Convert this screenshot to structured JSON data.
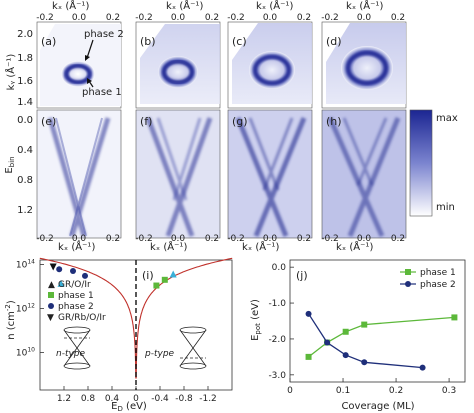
{
  "figure": {
    "top_axis_label": "kₓ (Å⁻¹)",
    "top_ticks": [
      "-0.2",
      "0.0",
      "0.2"
    ],
    "bottom_axis_label": "kₓ (Å⁻¹)",
    "bottom_ticks": [
      "-0.2",
      "0.0",
      "0.2"
    ],
    "ky_label": "kᵧ (Å⁻¹)",
    "ky_ticks": [
      "2.0",
      "1.8",
      "1.6",
      "1.4"
    ],
    "ebin_label": "Eₕᵢₙ (eV)",
    "ebin_label_main": "E",
    "ebin_label_sub": "bin",
    "ebin_ticks": [
      "0.0",
      "0.4",
      "0.8",
      "1.2"
    ],
    "panel_letters_top": [
      "(a)",
      "(b)",
      "(c)",
      "(d)"
    ],
    "panel_letters_mid": [
      "(e)",
      "(f)",
      "(g)",
      "(h)"
    ],
    "annotation_phase2": "phase 2",
    "annotation_phase1": "phase 1",
    "colorbar_max": "max",
    "colorbar_min": "min"
  },
  "plot_i": {
    "letter": "(i)",
    "ylabel": "n (cm⁻²)",
    "ylabel_main": "n (cm",
    "ylabel_exp": "-2",
    "ylabel_close": ")",
    "yticks_base": [
      "10",
      "10",
      "10"
    ],
    "yticks_exp": [
      "14",
      "12",
      "10"
    ],
    "xlabel_main": "E",
    "xlabel_sub": "D",
    "xlabel_rest": " (eV)",
    "xticks": [
      "1.2",
      "0.8",
      "0.4",
      "0",
      "-0.4",
      "-0.8",
      "-1.2"
    ],
    "legend": [
      "GR/O/Ir",
      "phase 1",
      "phase 2",
      "GR/Rb/O/Ir"
    ],
    "ntype": "n-type",
    "ptype": "p-type"
  },
  "plot_j": {
    "letter": "(j)",
    "ylabel_main": "E",
    "ylabel_sub": "pot",
    "ylabel_rest": " (eV)",
    "yticks": [
      "0.0",
      "-1.0",
      "-2.0",
      "-3.0"
    ],
    "xticks": [
      "0",
      "0.1",
      "0.2",
      "0.3"
    ],
    "xlabel": "Coverage  (ML)",
    "legend": [
      "phase 1",
      "phase 2"
    ]
  },
  "colors": {
    "phase1": "#5cb83a",
    "phase2": "#1f2f7a",
    "curve": "#c0302a",
    "gr_o_ir": "#3ab0d8",
    "arpes_dark": "#1b2592"
  },
  "chart_data": [
    {
      "type": "line",
      "title": "",
      "xlabel": "E_D (eV)",
      "ylabel": "n (cm^-2)",
      "xlim": [
        1.6,
        -1.6
      ],
      "ylim_log10": [
        8.3,
        14.2
      ],
      "yscale": "log",
      "series": [
        {
          "name": "GR/O/Ir",
          "x": [
            1.25,
            -0.62
          ],
          "y": [
            13000000000000.0,
            35000000000000.0
          ]
        },
        {
          "name": "phase 1",
          "x": [
            -0.34,
            -0.48
          ],
          "y": [
            11000000000000.0,
            20000000000000.0
          ]
        },
        {
          "name": "phase 2",
          "x": [
            1.28,
            1.05,
            0.85
          ],
          "y": [
            60000000000000.0,
            50000000000000.0,
            30000000000000.0
          ]
        },
        {
          "name": "GR/Rb/O/Ir",
          "x": [
            1.38
          ],
          "y": [
            80000000000000.0
          ]
        }
      ]
    },
    {
      "type": "line",
      "title": "",
      "xlabel": "Coverage (ML)",
      "ylabel": "E_pot (eV)",
      "xlim": [
        0,
        0.33
      ],
      "ylim": [
        -3.2,
        0.2
      ],
      "series": [
        {
          "name": "phase 1",
          "x": [
            0.035,
            0.07,
            0.105,
            0.14,
            0.31
          ],
          "y": [
            -2.5,
            -2.1,
            -1.8,
            -1.6,
            -1.4
          ]
        },
        {
          "name": "phase 2",
          "x": [
            0.035,
            0.07,
            0.105,
            0.14,
            0.25
          ],
          "y": [
            -1.3,
            -2.1,
            -2.45,
            -2.65,
            -2.8
          ]
        }
      ]
    }
  ]
}
